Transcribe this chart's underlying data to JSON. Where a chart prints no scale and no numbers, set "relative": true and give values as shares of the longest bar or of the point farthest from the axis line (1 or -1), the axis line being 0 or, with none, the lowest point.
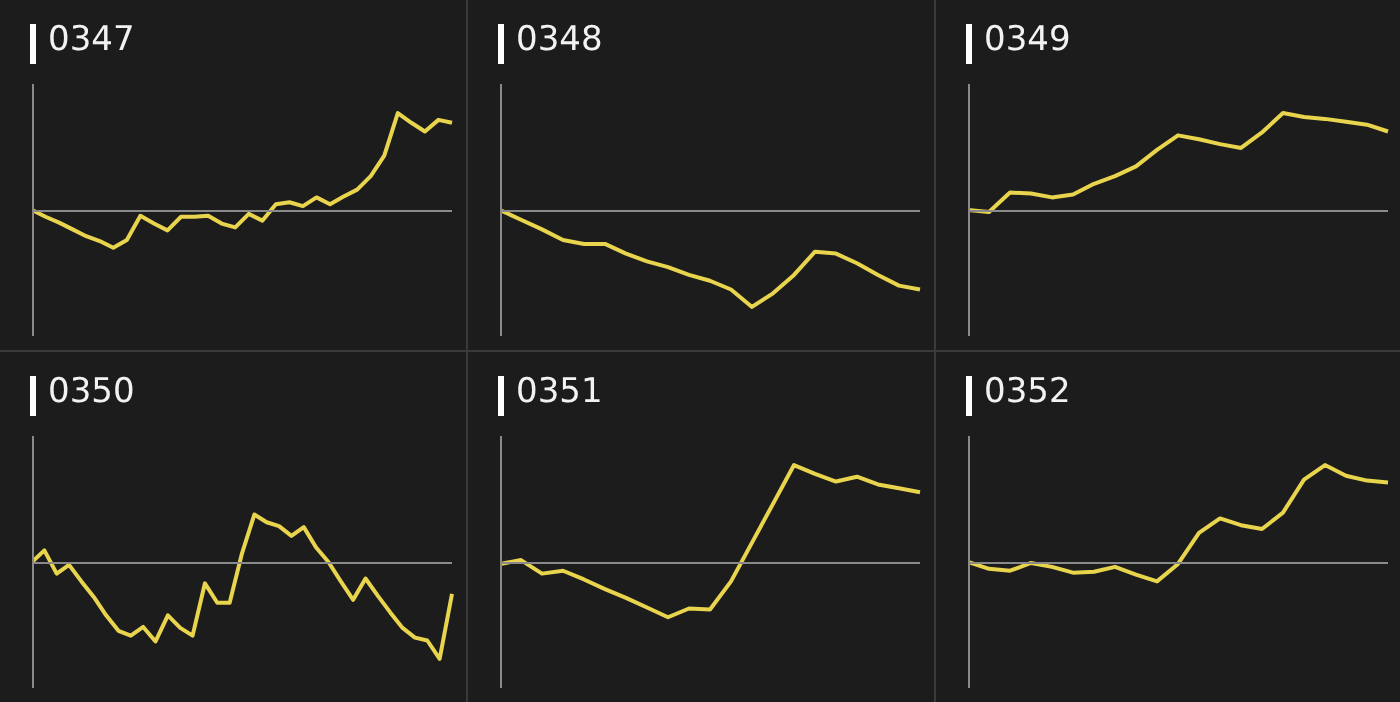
{
  "chart_data": [
    {
      "type": "line",
      "title": "0347",
      "relative": true,
      "categories": [
        null,
        null,
        null,
        null,
        null,
        null,
        null,
        null,
        null,
        null,
        null,
        null,
        null,
        null,
        null,
        null,
        null,
        null,
        null,
        null,
        null,
        null,
        null,
        null,
        null,
        null,
        null,
        null,
        null,
        null,
        null,
        null
      ],
      "series": [
        {
          "color": "#e8d44d",
          "values": [
            0,
            -0.07,
            -0.13,
            -0.2,
            -0.27,
            -0.32,
            -0.39,
            -0.31,
            -0.06,
            -0.14,
            -0.21,
            -0.07,
            -0.07,
            -0.06,
            -0.14,
            -0.18,
            -0.04,
            -0.11,
            0.06,
            0.08,
            0.04,
            0.13,
            0.06,
            0.14,
            0.21,
            0.35,
            0.56,
            1,
            0.9,
            0.81,
            0.93,
            0.9
          ]
        }
      ]
    },
    {
      "type": "line",
      "title": "0348",
      "relative": true,
      "categories": [
        null,
        null,
        null,
        null,
        null,
        null,
        null,
        null,
        null,
        null,
        null,
        null,
        null,
        null,
        null,
        null,
        null,
        null,
        null,
        null,
        null
      ],
      "series": [
        {
          "color": "#e8d44d",
          "values": [
            0,
            -0.1,
            -0.2,
            -0.31,
            -0.35,
            -0.35,
            -0.45,
            -0.53,
            -0.59,
            -0.67,
            -0.73,
            -0.82,
            -1,
            -0.86,
            -0.67,
            -0.43,
            -0.45,
            -0.55,
            -0.67,
            -0.78,
            -0.82
          ]
        }
      ]
    },
    {
      "type": "line",
      "title": "0349",
      "relative": true,
      "categories": [
        null,
        null,
        null,
        null,
        null,
        null,
        null,
        null,
        null,
        null,
        null,
        null,
        null,
        null,
        null,
        null,
        null,
        null,
        null,
        null,
        null
      ],
      "series": [
        {
          "color": "#e8d44d",
          "values": [
            0,
            -0.02,
            0.18,
            0.17,
            0.13,
            0.16,
            0.27,
            0.35,
            0.45,
            0.62,
            0.77,
            0.73,
            0.68,
            0.64,
            0.8,
            1,
            0.96,
            0.94,
            0.91,
            0.88,
            0.81
          ]
        }
      ]
    },
    {
      "type": "line",
      "title": "0350",
      "relative": true,
      "categories": [
        null,
        null,
        null,
        null,
        null,
        null,
        null,
        null,
        null,
        null,
        null,
        null,
        null,
        null,
        null,
        null,
        null,
        null,
        null,
        null,
        null,
        null,
        null,
        null,
        null,
        null,
        null,
        null,
        null,
        null,
        null,
        null,
        null,
        null,
        null
      ],
      "series": [
        {
          "color": "#e8d44d",
          "values": [
            0,
            0.12,
            -0.12,
            -0.03,
            -0.2,
            -0.36,
            -0.55,
            -0.71,
            -0.76,
            -0.67,
            -0.82,
            -0.55,
            -0.68,
            -0.76,
            -0.22,
            -0.42,
            -0.42,
            0.09,
            0.49,
            0.41,
            0.37,
            0.27,
            0.36,
            0.15,
            0,
            -0.2,
            -0.39,
            -0.17,
            -0.35,
            -0.52,
            -0.68,
            -0.78,
            -0.81,
            -1,
            -0.33
          ]
        }
      ]
    },
    {
      "type": "line",
      "title": "0351",
      "relative": true,
      "categories": [
        null,
        null,
        null,
        null,
        null,
        null,
        null,
        null,
        null,
        null,
        null,
        null,
        null,
        null,
        null,
        null,
        null,
        null,
        null,
        null,
        null
      ],
      "series": [
        {
          "color": "#e8d44d",
          "values": [
            -0.02,
            0.02,
            -0.12,
            -0.09,
            -0.18,
            -0.28,
            -0.37,
            -0.47,
            -0.57,
            -0.48,
            -0.49,
            -0.2,
            0.2,
            0.6,
            1,
            0.91,
            0.83,
            0.88,
            0.8,
            0.76,
            0.72
          ]
        }
      ]
    },
    {
      "type": "line",
      "title": "0352",
      "relative": true,
      "categories": [
        null,
        null,
        null,
        null,
        null,
        null,
        null,
        null,
        null,
        null,
        null,
        null,
        null,
        null,
        null,
        null,
        null,
        null,
        null,
        null,
        null
      ],
      "series": [
        {
          "color": "#e8d44d",
          "values": [
            0,
            -0.07,
            -0.09,
            -0.01,
            -0.05,
            -0.11,
            -0.1,
            -0.05,
            -0.13,
            -0.2,
            -0.02,
            0.3,
            0.45,
            0.38,
            0.34,
            0.51,
            0.85,
            1,
            0.89,
            0.84,
            0.82
          ]
        }
      ]
    }
  ]
}
